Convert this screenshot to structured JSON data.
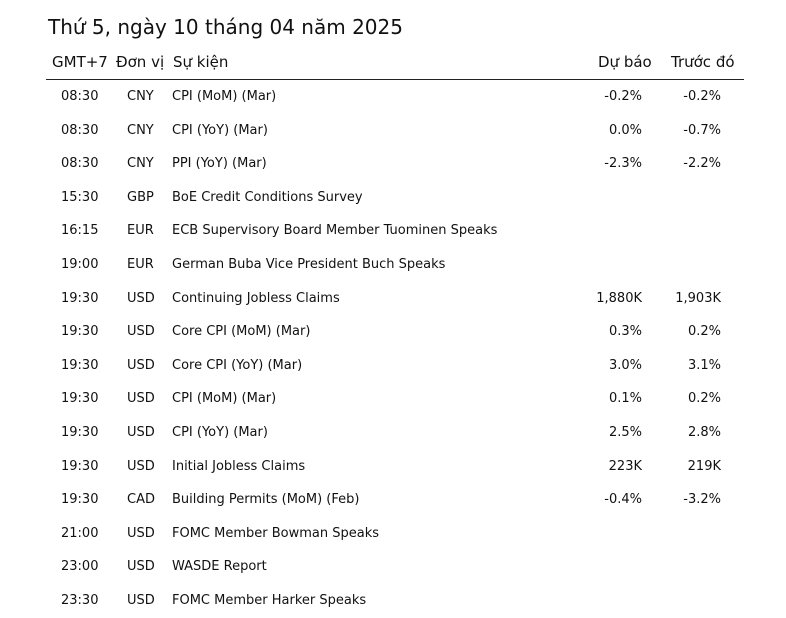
{
  "title": "Thứ 5, ngày 10 tháng 04 năm 2025",
  "headers": {
    "time": "GMT+7",
    "currency": "Đơn vị",
    "event": "Sự kiện",
    "forecast": "Dự báo",
    "previous": "Trước đó"
  },
  "rows": [
    {
      "time": "08:30",
      "currency": "CNY",
      "event": "CPI (MoM) (Mar)",
      "forecast": "-0.2%",
      "previous": "-0.2%"
    },
    {
      "time": "08:30",
      "currency": "CNY",
      "event": "CPI (YoY) (Mar)",
      "forecast": "0.0%",
      "previous": "-0.7%"
    },
    {
      "time": "08:30",
      "currency": "CNY",
      "event": "PPI (YoY) (Mar)",
      "forecast": "-2.3%",
      "previous": "-2.2%"
    },
    {
      "time": "15:30",
      "currency": "GBP",
      "event": "BoE Credit Conditions Survey",
      "forecast": "",
      "previous": ""
    },
    {
      "time": "16:15",
      "currency": "EUR",
      "event": "ECB Supervisory Board Member Tuominen Speaks",
      "forecast": "",
      "previous": ""
    },
    {
      "time": "19:00",
      "currency": "EUR",
      "event": "German Buba Vice President Buch Speaks",
      "forecast": "",
      "previous": ""
    },
    {
      "time": "19:30",
      "currency": "USD",
      "event": "Continuing Jobless Claims",
      "forecast": "1,880K",
      "previous": "1,903K"
    },
    {
      "time": "19:30",
      "currency": "USD",
      "event": "Core CPI (MoM) (Mar)",
      "forecast": "0.3%",
      "previous": "0.2%"
    },
    {
      "time": "19:30",
      "currency": "USD",
      "event": "Core CPI (YoY) (Mar)",
      "forecast": "3.0%",
      "previous": "3.1%"
    },
    {
      "time": "19:30",
      "currency": "USD",
      "event": "CPI (MoM) (Mar)",
      "forecast": "0.1%",
      "previous": "0.2%"
    },
    {
      "time": "19:30",
      "currency": "USD",
      "event": "CPI (YoY) (Mar)",
      "forecast": "2.5%",
      "previous": "2.8%"
    },
    {
      "time": "19:30",
      "currency": "USD",
      "event": "Initial Jobless Claims",
      "forecast": "223K",
      "previous": "219K"
    },
    {
      "time": "19:30",
      "currency": "CAD",
      "event": "Building Permits (MoM) (Feb)",
      "forecast": "-0.4%",
      "previous": "-3.2%"
    },
    {
      "time": "21:00",
      "currency": "USD",
      "event": "FOMC Member Bowman Speaks",
      "forecast": "",
      "previous": ""
    },
    {
      "time": "23:00",
      "currency": "USD",
      "event": "WASDE Report",
      "forecast": "",
      "previous": ""
    },
    {
      "time": "23:30",
      "currency": "USD",
      "event": "FOMC Member Harker Speaks",
      "forecast": "",
      "previous": ""
    }
  ]
}
